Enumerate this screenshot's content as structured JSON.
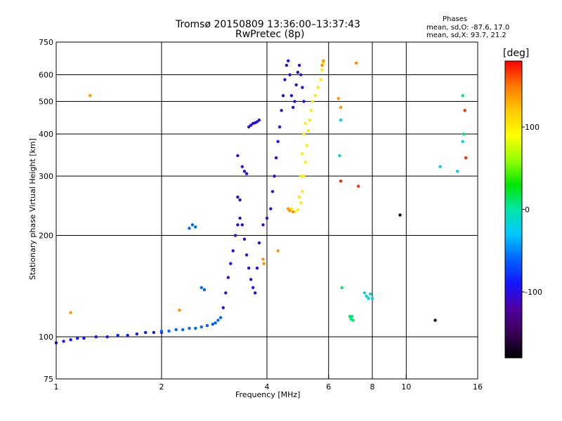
{
  "chart_data": {
    "type": "scatter",
    "title": "Tromsø 20150809 13:36:00–13:37:43",
    "subtitle": "RwPretec (8p)",
    "xlabel": "Frequency [MHz]",
    "ylabel": "Stationary phase Virtual Height [km]",
    "x_scale": "log",
    "y_scale": "log",
    "xlim": [
      1,
      16
    ],
    "ylim": [
      75,
      750
    ],
    "x_ticks": [
      1,
      2,
      4,
      6,
      8,
      10,
      16
    ],
    "x_gridlines": [
      2,
      4,
      6,
      8,
      10
    ],
    "y_ticks": [
      75,
      100,
      200,
      300,
      400,
      500,
      600,
      750
    ],
    "y_gridlines": [
      100,
      200,
      300,
      400,
      500,
      600
    ],
    "grid": true,
    "stats": {
      "heading": "Phases",
      "o_line": "mean, sd,O: -87.6, 17.0",
      "x_line": "mean, sd,X:  93.7, 21.2"
    },
    "colorbar": {
      "label": "[deg]",
      "min": -180,
      "max": 180,
      "ticks": [
        100,
        0,
        -100
      ],
      "colors": [
        "#000000",
        "#3a0055",
        "#5000a0",
        "#1414ff",
        "#0064ff",
        "#00c8ff",
        "#00e6aa",
        "#00e600",
        "#96ff00",
        "#ffff00",
        "#ffc800",
        "#ff7800",
        "#ff0000"
      ]
    },
    "series": [
      {
        "phase": -90,
        "points": [
          [
            1.0,
            96
          ],
          [
            1.05,
            97
          ],
          [
            1.1,
            98
          ],
          [
            1.15,
            99
          ],
          [
            1.2,
            99
          ],
          [
            1.3,
            100
          ],
          [
            1.4,
            100
          ],
          [
            1.5,
            101
          ],
          [
            1.6,
            101
          ],
          [
            1.7,
            102
          ],
          [
            1.8,
            103
          ],
          [
            1.9,
            103
          ],
          [
            2.0,
            103
          ]
        ]
      },
      {
        "phase": -60,
        "points": [
          [
            2.0,
            104
          ],
          [
            2.1,
            104
          ],
          [
            2.2,
            105
          ],
          [
            2.3,
            105
          ],
          [
            2.4,
            106
          ],
          [
            2.5,
            106
          ],
          [
            2.6,
            107
          ],
          [
            2.7,
            108
          ],
          [
            2.8,
            109
          ],
          [
            2.85,
            110
          ],
          [
            2.9,
            112
          ],
          [
            2.95,
            114
          ],
          [
            2.6,
            140
          ],
          [
            2.65,
            138
          ],
          [
            2.4,
            210
          ],
          [
            2.45,
            215
          ],
          [
            2.5,
            212
          ]
        ]
      },
      {
        "phase": -100,
        "points": [
          [
            3.0,
            122
          ],
          [
            3.05,
            135
          ],
          [
            3.1,
            150
          ],
          [
            3.15,
            165
          ],
          [
            3.2,
            180
          ],
          [
            3.25,
            200
          ],
          [
            3.3,
            215
          ],
          [
            3.35,
            225
          ],
          [
            3.4,
            215
          ],
          [
            3.45,
            195
          ],
          [
            3.5,
            175
          ],
          [
            3.55,
            160
          ],
          [
            3.6,
            148
          ],
          [
            3.65,
            140
          ],
          [
            3.7,
            135
          ],
          [
            3.75,
            160
          ],
          [
            3.8,
            190
          ],
          [
            3.9,
            215
          ],
          [
            4.0,
            225
          ],
          [
            4.1,
            240
          ],
          [
            4.15,
            270
          ],
          [
            4.2,
            300
          ],
          [
            4.25,
            340
          ],
          [
            4.3,
            380
          ],
          [
            4.35,
            420
          ],
          [
            4.4,
            470
          ],
          [
            4.45,
            520
          ],
          [
            4.5,
            580
          ],
          [
            4.55,
            640
          ],
          [
            4.6,
            660
          ],
          [
            4.65,
            600
          ],
          [
            4.7,
            520
          ],
          [
            4.75,
            480
          ],
          [
            4.8,
            500
          ],
          [
            4.85,
            560
          ],
          [
            4.9,
            610
          ],
          [
            4.95,
            640
          ],
          [
            5.0,
            600
          ],
          [
            5.05,
            550
          ],
          [
            5.1,
            500
          ],
          [
            3.55,
            420
          ],
          [
            3.6,
            425
          ],
          [
            3.65,
            430
          ],
          [
            3.7,
            432
          ],
          [
            3.75,
            435
          ],
          [
            3.8,
            440
          ],
          [
            3.4,
            320
          ],
          [
            3.45,
            310
          ],
          [
            3.5,
            305
          ],
          [
            3.3,
            260
          ],
          [
            3.35,
            255
          ],
          [
            3.3,
            345
          ]
        ]
      },
      {
        "phase": 100,
        "points": [
          [
            4.7,
            240
          ],
          [
            4.8,
            235
          ],
          [
            4.9,
            238
          ],
          [
            5.0,
            250
          ],
          [
            5.05,
            270
          ],
          [
            5.1,
            300
          ],
          [
            5.15,
            330
          ],
          [
            5.2,
            370
          ],
          [
            5.25,
            410
          ],
          [
            5.3,
            440
          ],
          [
            5.35,
            470
          ],
          [
            5.4,
            500
          ],
          [
            5.5,
            520
          ],
          [
            5.6,
            550
          ],
          [
            5.7,
            580
          ],
          [
            5.75,
            620
          ],
          [
            5.8,
            650
          ],
          [
            4.95,
            260
          ],
          [
            5.0,
            300
          ],
          [
            5.05,
            350
          ],
          [
            5.1,
            400
          ],
          [
            5.15,
            430
          ]
        ]
      },
      {
        "phase": 140,
        "points": [
          [
            4.6,
            240
          ],
          [
            4.65,
            237
          ],
          [
            4.75,
            235
          ],
          [
            5.75,
            640
          ],
          [
            5.8,
            660
          ],
          [
            3.9,
            170
          ],
          [
            3.92,
            165
          ],
          [
            6.4,
            510
          ],
          [
            6.5,
            480
          ],
          [
            7.2,
            650
          ],
          [
            1.25,
            520
          ],
          [
            1.1,
            118
          ],
          [
            2.25,
            120
          ],
          [
            4.3,
            180
          ]
        ]
      },
      {
        "phase": 10,
        "points": [
          [
            6.9,
            115
          ],
          [
            6.95,
            113
          ],
          [
            7.0,
            115
          ],
          [
            7.05,
            112
          ],
          [
            6.55,
            140
          ],
          [
            14.5,
            520
          ],
          [
            14.6,
            400
          ]
        ]
      },
      {
        "phase": -20,
        "points": [
          [
            7.6,
            135
          ],
          [
            7.7,
            132
          ],
          [
            7.8,
            130
          ],
          [
            7.9,
            134
          ],
          [
            8.0,
            130
          ],
          [
            6.5,
            440
          ],
          [
            6.45,
            345
          ],
          [
            12.5,
            320
          ],
          [
            14.0,
            310
          ],
          [
            14.5,
            380
          ]
        ]
      },
      {
        "phase": -170,
        "points": [
          [
            9.6,
            230
          ],
          [
            12.1,
            112
          ]
        ]
      },
      {
        "phase": 170,
        "points": [
          [
            14.7,
            470
          ],
          [
            14.8,
            340
          ],
          [
            7.3,
            280
          ],
          [
            6.5,
            290
          ]
        ]
      }
    ]
  }
}
